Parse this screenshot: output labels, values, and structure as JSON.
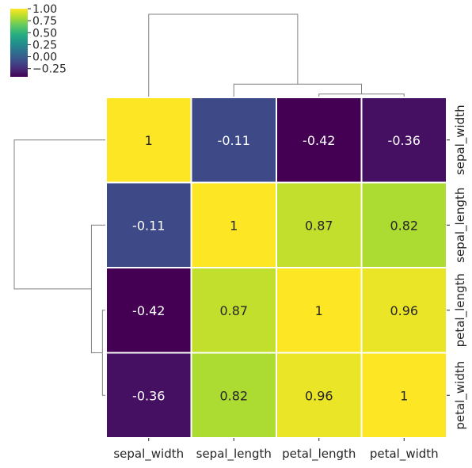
{
  "chart_data": {
    "type": "heatmap",
    "title": "",
    "row_labels": [
      "sepal_width",
      "sepal_length",
      "petal_length",
      "petal_width"
    ],
    "col_labels": [
      "sepal_width",
      "sepal_length",
      "petal_length",
      "petal_width"
    ],
    "values": [
      [
        1.0,
        -0.11,
        -0.42,
        -0.36
      ],
      [
        -0.11,
        1.0,
        0.87,
        0.82
      ],
      [
        -0.42,
        0.87,
        1.0,
        0.96
      ],
      [
        -0.36,
        0.82,
        0.96,
        1.0
      ]
    ],
    "cell_labels": [
      [
        "1",
        "-0.11",
        "-0.42",
        "-0.36"
      ],
      [
        "-0.11",
        "1",
        "0.87",
        "0.82"
      ],
      [
        "-0.42",
        "0.87",
        "1",
        "0.96"
      ],
      [
        "-0.36",
        "0.82",
        "0.96",
        "1"
      ]
    ],
    "colormap": "viridis",
    "vmin": -0.42,
    "vmax": 1.0,
    "colorbar": {
      "ticks": [
        1.0,
        0.75,
        0.5,
        0.25,
        0.0,
        -0.25
      ],
      "tick_labels": [
        "1.00",
        "0.75",
        "0.50",
        "0.25",
        "0.00",
        "−0.25"
      ],
      "placement": "top-left"
    },
    "dendrograms": {
      "top": "columns",
      "left": "rows",
      "linkage": [
        {
          "a": "petal_length",
          "b": "petal_width",
          "height": 0.04
        },
        {
          "a": "sepal_length",
          "b": "petal_length+petal_width",
          "height": 0.16
        },
        {
          "a": "sepal_width",
          "b": "sepal_length+petal_length+petal_width",
          "height": 1.0
        }
      ]
    },
    "line_color": "#808080",
    "grid_line_color": "#ffffff"
  }
}
